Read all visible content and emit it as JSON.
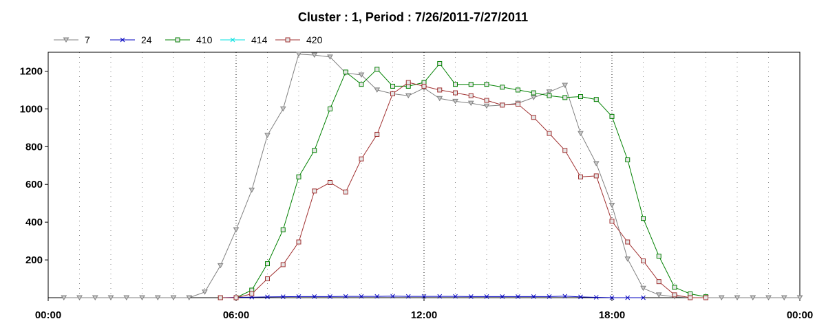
{
  "chart_data": {
    "type": "line",
    "title": "Cluster : 1, Period : 7/26/2011-7/27/2011",
    "xlabel": "",
    "ylabel": "",
    "xlim": [
      0,
      24
    ],
    "ylim": [
      0,
      1300
    ],
    "x_ticks": [
      {
        "value": 0,
        "label": "00:00"
      },
      {
        "value": 6,
        "label": "06:00"
      },
      {
        "value": 12,
        "label": "12:00"
      },
      {
        "value": 18,
        "label": "18:00"
      },
      {
        "value": 24,
        "label": "00:00"
      }
    ],
    "y_ticks": [
      200,
      400,
      600,
      800,
      1000,
      1200
    ],
    "grid": true,
    "legend_position": "top-left",
    "series": [
      {
        "name": "7",
        "color": "#808080",
        "marker": "triangle-down",
        "x": [
          0.5,
          1,
          1.5,
          2,
          2.5,
          3,
          3.5,
          4,
          4.5,
          5,
          5.5,
          6,
          6.5,
          7,
          7.5,
          8,
          8.5,
          9,
          9.5,
          10,
          10.5,
          11,
          11.5,
          12,
          12.5,
          13,
          13.5,
          14,
          14.5,
          15,
          15.5,
          16,
          16.5,
          17,
          17.5,
          18,
          18.5,
          19,
          19.5,
          20,
          20.5,
          21,
          21.5,
          22,
          22.5,
          23,
          23.5,
          24
        ],
        "y": [
          0,
          0,
          0,
          0,
          0,
          0,
          0,
          0,
          0,
          30,
          170,
          360,
          570,
          860,
          1000,
          1290,
          1285,
          1275,
          1190,
          1180,
          1100,
          1080,
          1070,
          1110,
          1055,
          1040,
          1030,
          1015,
          1020,
          1030,
          1060,
          1090,
          1125,
          870,
          710,
          490,
          205,
          50,
          15,
          5,
          0,
          0,
          0,
          0,
          0,
          0,
          0,
          0
        ]
      },
      {
        "name": "24",
        "color": "#0000c0",
        "marker": "x",
        "x": [
          5.5,
          6,
          6.5,
          7,
          7.5,
          8,
          8.5,
          9,
          9.5,
          10,
          10.5,
          11,
          11.5,
          12,
          12.5,
          13,
          13.5,
          14,
          14.5,
          15,
          15.5,
          16,
          16.5,
          17,
          17.5,
          18,
          18.5,
          19
        ],
        "y": [
          0,
          2,
          3,
          4,
          5,
          6,
          6,
          6,
          7,
          7,
          7,
          8,
          7,
          7,
          7,
          7,
          6,
          6,
          6,
          6,
          6,
          6,
          8,
          4,
          2,
          0,
          0,
          0
        ]
      },
      {
        "name": "410",
        "color": "#008000",
        "marker": "square",
        "x": [
          5.5,
          6,
          6.5,
          7,
          7.5,
          8,
          8.5,
          9,
          9.5,
          10,
          10.5,
          11,
          11.5,
          12,
          12.5,
          13,
          13.5,
          14,
          14.5,
          15,
          15.5,
          16,
          16.5,
          17,
          17.5,
          18,
          18.5,
          19,
          19.5,
          20,
          20.5,
          21
        ],
        "y": [
          0,
          0,
          40,
          180,
          360,
          640,
          780,
          1000,
          1195,
          1130,
          1210,
          1120,
          1120,
          1140,
          1240,
          1130,
          1130,
          1130,
          1115,
          1100,
          1085,
          1070,
          1060,
          1065,
          1050,
          960,
          730,
          420,
          220,
          55,
          20,
          5
        ]
      },
      {
        "name": "414",
        "color": "#00e0e0",
        "marker": "x",
        "x": [],
        "y": []
      },
      {
        "name": "420",
        "color": "#a03030",
        "marker": "square",
        "x": [
          5.5,
          6,
          6.5,
          7,
          7.5,
          8,
          8.5,
          9,
          9.5,
          10,
          10.5,
          11,
          11.5,
          12,
          12.5,
          13,
          13.5,
          14,
          14.5,
          15,
          15.5,
          16,
          16.5,
          17,
          17.5,
          18,
          18.5,
          19,
          19.5,
          20,
          20.5,
          21
        ],
        "y": [
          0,
          0,
          20,
          100,
          175,
          295,
          565,
          610,
          560,
          735,
          865,
          1080,
          1140,
          1120,
          1100,
          1085,
          1070,
          1045,
          1020,
          1025,
          955,
          870,
          780,
          640,
          645,
          405,
          295,
          195,
          85,
          15,
          0,
          0
        ]
      }
    ]
  }
}
